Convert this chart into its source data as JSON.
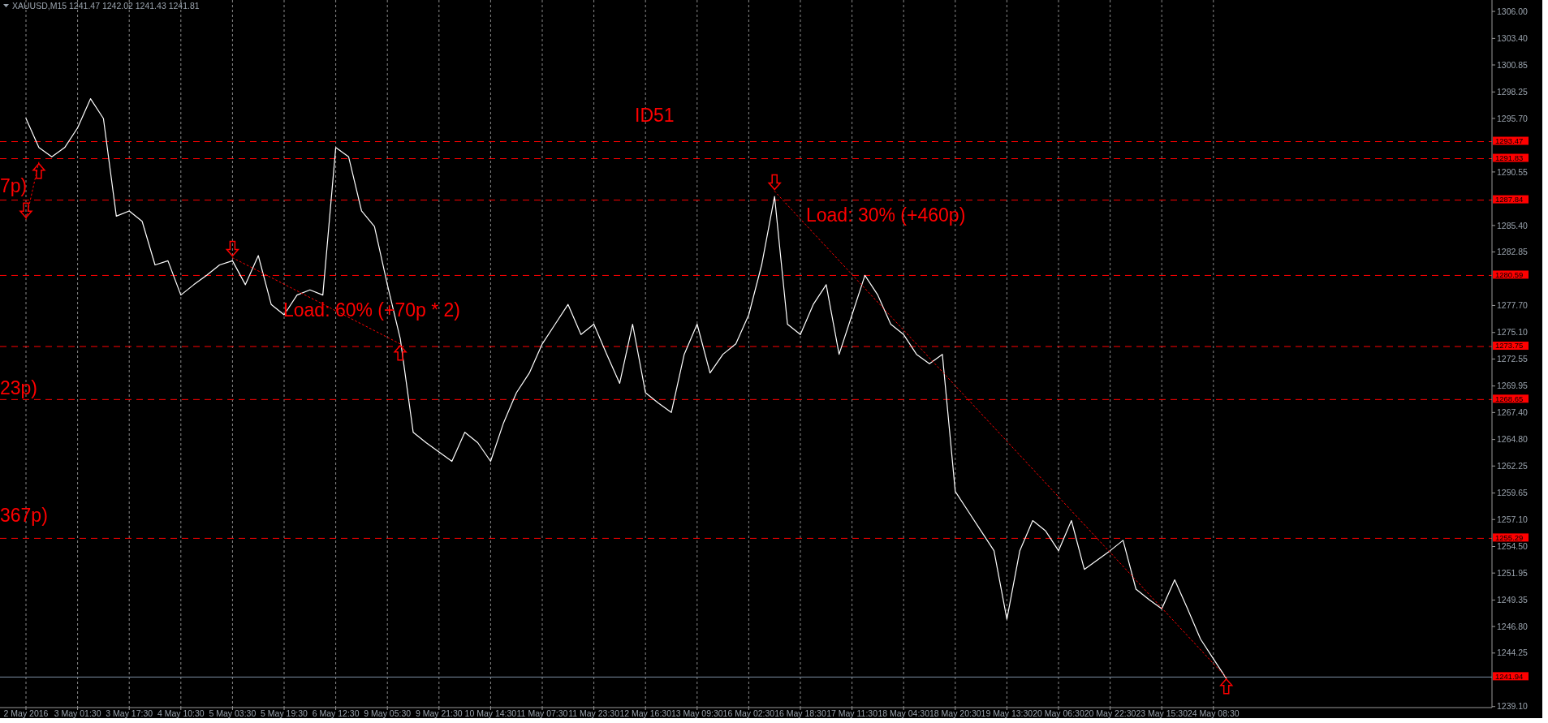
{
  "chart_data": {
    "type": "line",
    "title": "XAUUSD,M15  1241.47 1242.02 1241.43 1241.81",
    "categories": [
      "2 May 2016",
      null,
      null,
      null,
      "3 May 01:30",
      null,
      null,
      null,
      "3 May 17:30",
      null,
      null,
      null,
      "4 May 10:30",
      null,
      null,
      null,
      "5 May 03:30",
      null,
      null,
      null,
      "5 May 19:30",
      null,
      null,
      null,
      "6 May 12:30",
      null,
      null,
      null,
      "9 May 05:30",
      null,
      null,
      null,
      "9 May 21:30",
      null,
      null,
      null,
      "10 May 14:30",
      null,
      null,
      null,
      "11 May 07:30",
      null,
      null,
      null,
      "11 May 23:30",
      null,
      null,
      null,
      "12 May 16:30",
      null,
      null,
      null,
      "13 May 09:30",
      null,
      null,
      null,
      "16 May 02:30",
      null,
      null,
      null,
      "16 May 18:30",
      null,
      null,
      null,
      "17 May 11:30",
      null,
      null,
      null,
      "18 May 04:30",
      null,
      null,
      null,
      "18 May 20:30",
      null,
      null,
      null,
      "19 May 13:30",
      null,
      null,
      null,
      "20 May 06:30",
      null,
      null,
      null,
      "20 May 22:30",
      null,
      null,
      null,
      "23 May 15:30",
      null,
      null,
      null,
      "24 May 08:30",
      null,
      null,
      null,
      null,
      null,
      null,
      null,
      null,
      null,
      null,
      null,
      null,
      null,
      null,
      null,
      null,
      null,
      null,
      null,
      null,
      null
    ],
    "series": [
      {
        "color": "#ffffff",
        "line_style": "solid",
        "values": [
          1295.7,
          1292.9,
          1292.0,
          1292.9,
          1294.8,
          1297.6,
          1295.7,
          1286.3,
          1286.8,
          1285.8,
          1281.6,
          1282.0,
          1278.7,
          1279.7,
          1280.6,
          1281.6,
          1282.0,
          1279.7,
          1282.5,
          1277.8,
          1276.8,
          1278.7,
          1279.2,
          1278.7,
          1292.9,
          1292.0,
          1286.8,
          1285.3,
          1279.7,
          1274.5,
          1265.5,
          1264.5,
          1263.6,
          1262.7,
          1265.5,
          1264.5,
          1262.7,
          1266.4,
          1269.3,
          1271.2,
          1274.0,
          1275.9,
          1277.8,
          1274.9,
          1275.9,
          1273.0,
          1270.2,
          1275.9,
          1269.3,
          1268.3,
          1267.4,
          1273.0,
          1275.9,
          1271.2,
          1273.0,
          1274.0,
          1276.8,
          1281.6,
          1288.2,
          1275.9,
          1274.9,
          1277.8,
          1279.7,
          1273.0,
          1276.8,
          1280.6,
          1278.7,
          1275.9,
          1274.9,
          1273.0,
          1272.1,
          1273.0,
          1259.8,
          1257.9,
          1256.0,
          1254.1,
          1247.5,
          1254.1,
          1257.0,
          1256.0,
          1254.1,
          1257.0,
          1252.3,
          1253.2,
          1254.1,
          1255.1,
          1250.4,
          1249.4,
          1248.5,
          1251.3,
          1248.5,
          1245.6,
          1243.7,
          1241.8,
          null,
          null,
          null,
          null,
          null,
          null,
          null,
          null,
          null,
          null,
          null,
          null,
          null,
          null,
          null,
          null,
          null,
          null,
          null,
          null
        ]
      },
      {
        "color": "#ff0000",
        "line_style": "dotted",
        "values": [
          1286.0,
          1291.5,
          null,
          null,
          null,
          null,
          null,
          null,
          null,
          null,
          null,
          null,
          null,
          null,
          null,
          null,
          null,
          null,
          null,
          null,
          null,
          null,
          null,
          null,
          null,
          null,
          null,
          null,
          null,
          null,
          null,
          null,
          null,
          null,
          null,
          null,
          null,
          null,
          null,
          null,
          null,
          null,
          null,
          null,
          null,
          null,
          null,
          null,
          null,
          null,
          null,
          null,
          null,
          null,
          null,
          null,
          null,
          null,
          null,
          null,
          null,
          null,
          null,
          null,
          null,
          null,
          null,
          null,
          null,
          null,
          null,
          null,
          null,
          null,
          null,
          null,
          null,
          null,
          null,
          null,
          null,
          null,
          null,
          null,
          null,
          null,
          null,
          null,
          null,
          null,
          null,
          null,
          null,
          null,
          null,
          null,
          null,
          null,
          null,
          null,
          null,
          null,
          null,
          null,
          null,
          null,
          null,
          null,
          null,
          null,
          null,
          null,
          null,
          null
        ]
      },
      {
        "color": "#ff0000",
        "line_style": "dotted",
        "values": [
          null,
          null,
          null,
          null,
          null,
          null,
          null,
          null,
          null,
          null,
          null,
          null,
          null,
          null,
          null,
          null,
          1282.3,
          null,
          null,
          null,
          null,
          null,
          null,
          null,
          null,
          null,
          null,
          null,
          null,
          1274.0,
          null,
          null,
          null,
          null,
          null,
          null,
          null,
          null,
          null,
          null,
          null,
          null,
          null,
          null,
          null,
          null,
          null,
          null,
          null,
          null,
          null,
          null,
          null,
          null,
          null,
          null,
          null,
          null,
          null,
          null,
          null,
          null,
          null,
          null,
          null,
          null,
          null,
          null,
          null,
          null,
          null,
          null,
          null,
          null,
          null,
          null,
          null,
          null,
          null,
          null,
          null,
          null,
          null,
          null,
          null,
          null,
          null,
          null,
          null,
          null,
          null,
          null,
          null,
          null,
          null,
          null,
          null,
          null,
          null,
          null,
          null,
          null,
          null,
          null,
          null,
          null,
          null,
          null,
          null,
          null,
          null,
          null,
          null,
          null
        ]
      },
      {
        "color": "#ff0000",
        "line_style": "dotted",
        "values": [
          null,
          null,
          null,
          null,
          null,
          null,
          null,
          null,
          null,
          null,
          null,
          null,
          null,
          null,
          null,
          null,
          null,
          null,
          null,
          null,
          null,
          null,
          null,
          null,
          null,
          null,
          null,
          null,
          null,
          null,
          null,
          null,
          null,
          null,
          null,
          null,
          null,
          null,
          null,
          null,
          null,
          null,
          null,
          null,
          null,
          null,
          null,
          null,
          null,
          null,
          null,
          null,
          null,
          null,
          null,
          null,
          null,
          null,
          1288.7,
          null,
          null,
          null,
          null,
          null,
          null,
          null,
          null,
          null,
          null,
          null,
          null,
          null,
          null,
          null,
          null,
          null,
          null,
          null,
          null,
          null,
          null,
          null,
          null,
          null,
          null,
          null,
          null,
          null,
          null,
          null,
          null,
          null,
          null,
          1241.9,
          null,
          null,
          null,
          null,
          null,
          null,
          null,
          null,
          null,
          null,
          null,
          null,
          null,
          null,
          null,
          null,
          null,
          null,
          null,
          null
        ]
      }
    ],
    "ylim": [
      1239.0,
      1307.1
    ],
    "yticks": [
      {
        "value": 1306.0,
        "label": "1306.00"
      },
      {
        "value": 1303.4,
        "label": "1303.40"
      },
      {
        "value": 1300.85,
        "label": "1300.85"
      },
      {
        "value": 1298.25,
        "label": "1298.25"
      },
      {
        "value": 1295.7,
        "label": "1295.70"
      },
      {
        "value": 1290.55,
        "label": "1290.55"
      },
      {
        "value": 1285.4,
        "label": "1285.40"
      },
      {
        "value": 1282.85,
        "label": "1282.85"
      },
      {
        "value": 1277.7,
        "label": "1277.70"
      },
      {
        "value": 1275.1,
        "label": "1275.10"
      },
      {
        "value": 1272.55,
        "label": "1272.55"
      },
      {
        "value": 1269.95,
        "label": "1269.95"
      },
      {
        "value": 1267.4,
        "label": "1267.40"
      },
      {
        "value": 1264.8,
        "label": "1264.80"
      },
      {
        "value": 1262.25,
        "label": "1262.25"
      },
      {
        "value": 1259.65,
        "label": "1259.65"
      },
      {
        "value": 1257.1,
        "label": "1257.10"
      },
      {
        "value": 1254.5,
        "label": "1254.50"
      },
      {
        "value": 1251.95,
        "label": "1251.95"
      },
      {
        "value": 1249.35,
        "label": "1249.35"
      },
      {
        "value": 1246.8,
        "label": "1246.80"
      },
      {
        "value": 1244.25,
        "label": "1244.25"
      },
      {
        "value": 1239.1,
        "label": "1239.10"
      }
    ],
    "ref_lines": [
      {
        "axis": "y",
        "value": 1293.47,
        "label": "1293.47",
        "color": "#ff0000",
        "line_style": "dashed"
      },
      {
        "axis": "y",
        "value": 1291.83,
        "label": "1291.83",
        "color": "#ff0000",
        "line_style": "dashed"
      },
      {
        "axis": "y",
        "value": 1287.84,
        "label": "1287.84",
        "color": "#ff0000",
        "line_style": "dashed"
      },
      {
        "axis": "y",
        "value": 1280.59,
        "label": "1280.59",
        "color": "#ff0000",
        "line_style": "dashed"
      },
      {
        "axis": "y",
        "value": 1273.75,
        "label": "1273.75",
        "color": "#ff0000",
        "line_style": "dashed"
      },
      {
        "axis": "y",
        "value": 1268.65,
        "label": "1268.65",
        "color": "#ff0000",
        "line_style": "dashed"
      },
      {
        "axis": "y",
        "value": 1255.29,
        "label": "1255.29",
        "color": "#ff0000",
        "line_style": "dashed"
      },
      {
        "axis": "y",
        "value": 1241.94,
        "label": "1241.94",
        "color": "#7d8ea3",
        "line_style": "solid"
      }
    ],
    "annotations": [
      "ID51",
      "Load: 30% (+460p)",
      "Load: 60% (+70p * 2)",
      "7p)",
      "23p)",
      "367p)"
    ],
    "grid": "x"
  }
}
